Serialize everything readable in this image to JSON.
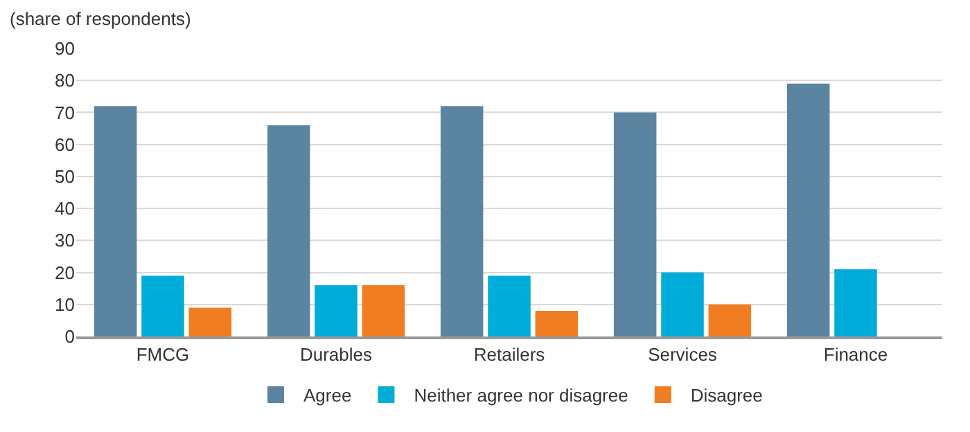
{
  "chart_data": {
    "type": "bar",
    "ylabel": "(share of respondents)",
    "categories": [
      "FMCG",
      "Durables",
      "Retailers",
      "Services",
      "Finance"
    ],
    "series": [
      {
        "name": "Agree",
        "color": "#5b84a0",
        "values": [
          72,
          66,
          72,
          70,
          79
        ]
      },
      {
        "name": "Neither agree nor disagree",
        "color": "#00acd8",
        "values": [
          19,
          16,
          19,
          20,
          21
        ]
      },
      {
        "name": "Disagree",
        "color": "#f07d22",
        "values": [
          9,
          16,
          8,
          10,
          null
        ]
      }
    ],
    "ylim": [
      0,
      90
    ],
    "yticks": [
      0,
      10,
      20,
      30,
      40,
      50,
      60,
      70,
      80,
      90
    ],
    "grid": "y",
    "legend": "bottom"
  }
}
